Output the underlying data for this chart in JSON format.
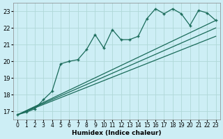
{
  "title": "",
  "xlabel": "Humidex (Indice chaleur)",
  "ylabel": "",
  "bg_color": "#cdeef5",
  "line_color": "#1a6b5a",
  "grid_color": "#b0d8d8",
  "xlim": [
    -0.5,
    23.5
  ],
  "ylim": [
    16.5,
    23.5
  ],
  "xticks": [
    0,
    1,
    2,
    3,
    4,
    5,
    6,
    7,
    8,
    9,
    10,
    11,
    12,
    13,
    14,
    15,
    16,
    17,
    18,
    19,
    20,
    21,
    22,
    23
  ],
  "yticks": [
    17,
    18,
    19,
    20,
    21,
    22,
    23
  ],
  "series1_x": [
    0,
    1,
    2,
    3,
    4,
    5,
    6,
    7,
    8,
    9,
    10,
    11,
    12,
    13,
    14,
    15,
    16,
    17,
    18,
    19,
    20,
    21,
    22,
    23
  ],
  "series1_y": [
    16.8,
    16.95,
    17.15,
    17.7,
    18.2,
    19.85,
    20.0,
    20.1,
    20.7,
    21.6,
    20.8,
    21.9,
    21.3,
    21.3,
    21.5,
    22.55,
    23.15,
    22.85,
    23.15,
    22.85,
    22.15,
    23.05,
    22.9,
    22.45
  ],
  "line2_x0": 0,
  "line2_x1": 23,
  "line2_y0": 16.8,
  "line2_y1": 22.45,
  "line3_x0": 0,
  "line3_x1": 23,
  "line3_y0": 16.8,
  "line3_y1": 22.0,
  "line4_x0": 0,
  "line4_x1": 23,
  "line4_y0": 16.8,
  "line4_y1": 21.5
}
